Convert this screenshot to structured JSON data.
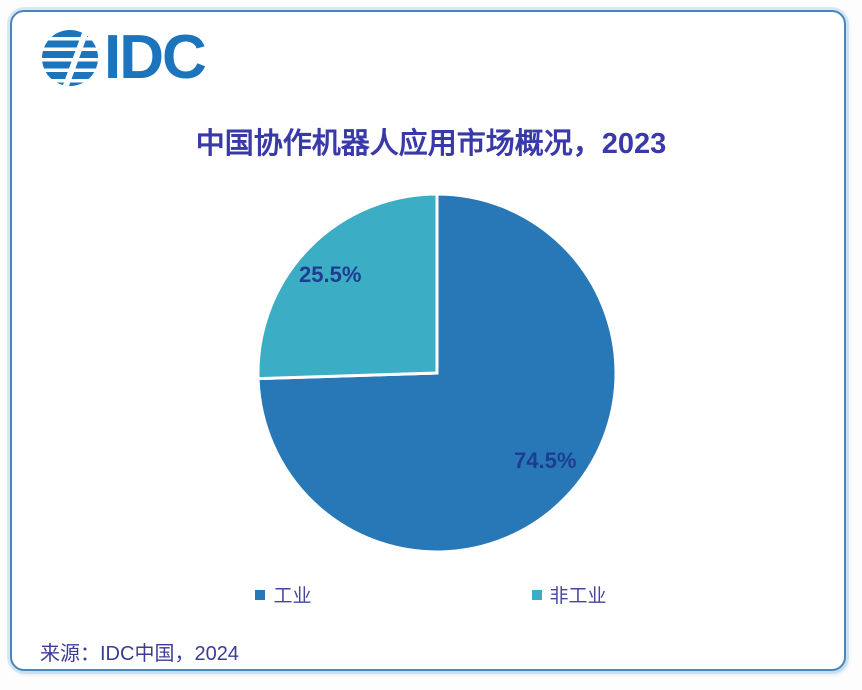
{
  "logo": {
    "text": "IDC"
  },
  "title": {
    "text": "中国协作机器人应用市场概况，2023"
  },
  "source": {
    "text": "来源：IDC中国，2024"
  },
  "colors": {
    "logo": "#1b74bc",
    "frame": "#4a86b8",
    "title": "#3939aa",
    "label": "#1f3d8f",
    "legend_text": "#4646a0",
    "text": "#3c3c96",
    "industrial": "#2878b8",
    "non_industrial": "#3badc4",
    "slice_divider": "#ffffff"
  },
  "chart_data": {
    "type": "pie",
    "title": "中国协作机器人应用市场概况，2023",
    "source": "来源：IDC中国，2024",
    "start_angle_deg": 0,
    "direction": "clockwise",
    "legend_position": "bottom",
    "slices": [
      {
        "label": "工业",
        "value": 74.5,
        "display": "74.5%",
        "color": "#2878b8"
      },
      {
        "label": "非工业",
        "value": 25.5,
        "display": "25.5%",
        "color": "#3badc4"
      }
    ]
  },
  "legend": {
    "items": [
      {
        "label": "工业",
        "color": "#2878b8"
      },
      {
        "label": "非工业",
        "color": "#3badc4"
      }
    ]
  }
}
